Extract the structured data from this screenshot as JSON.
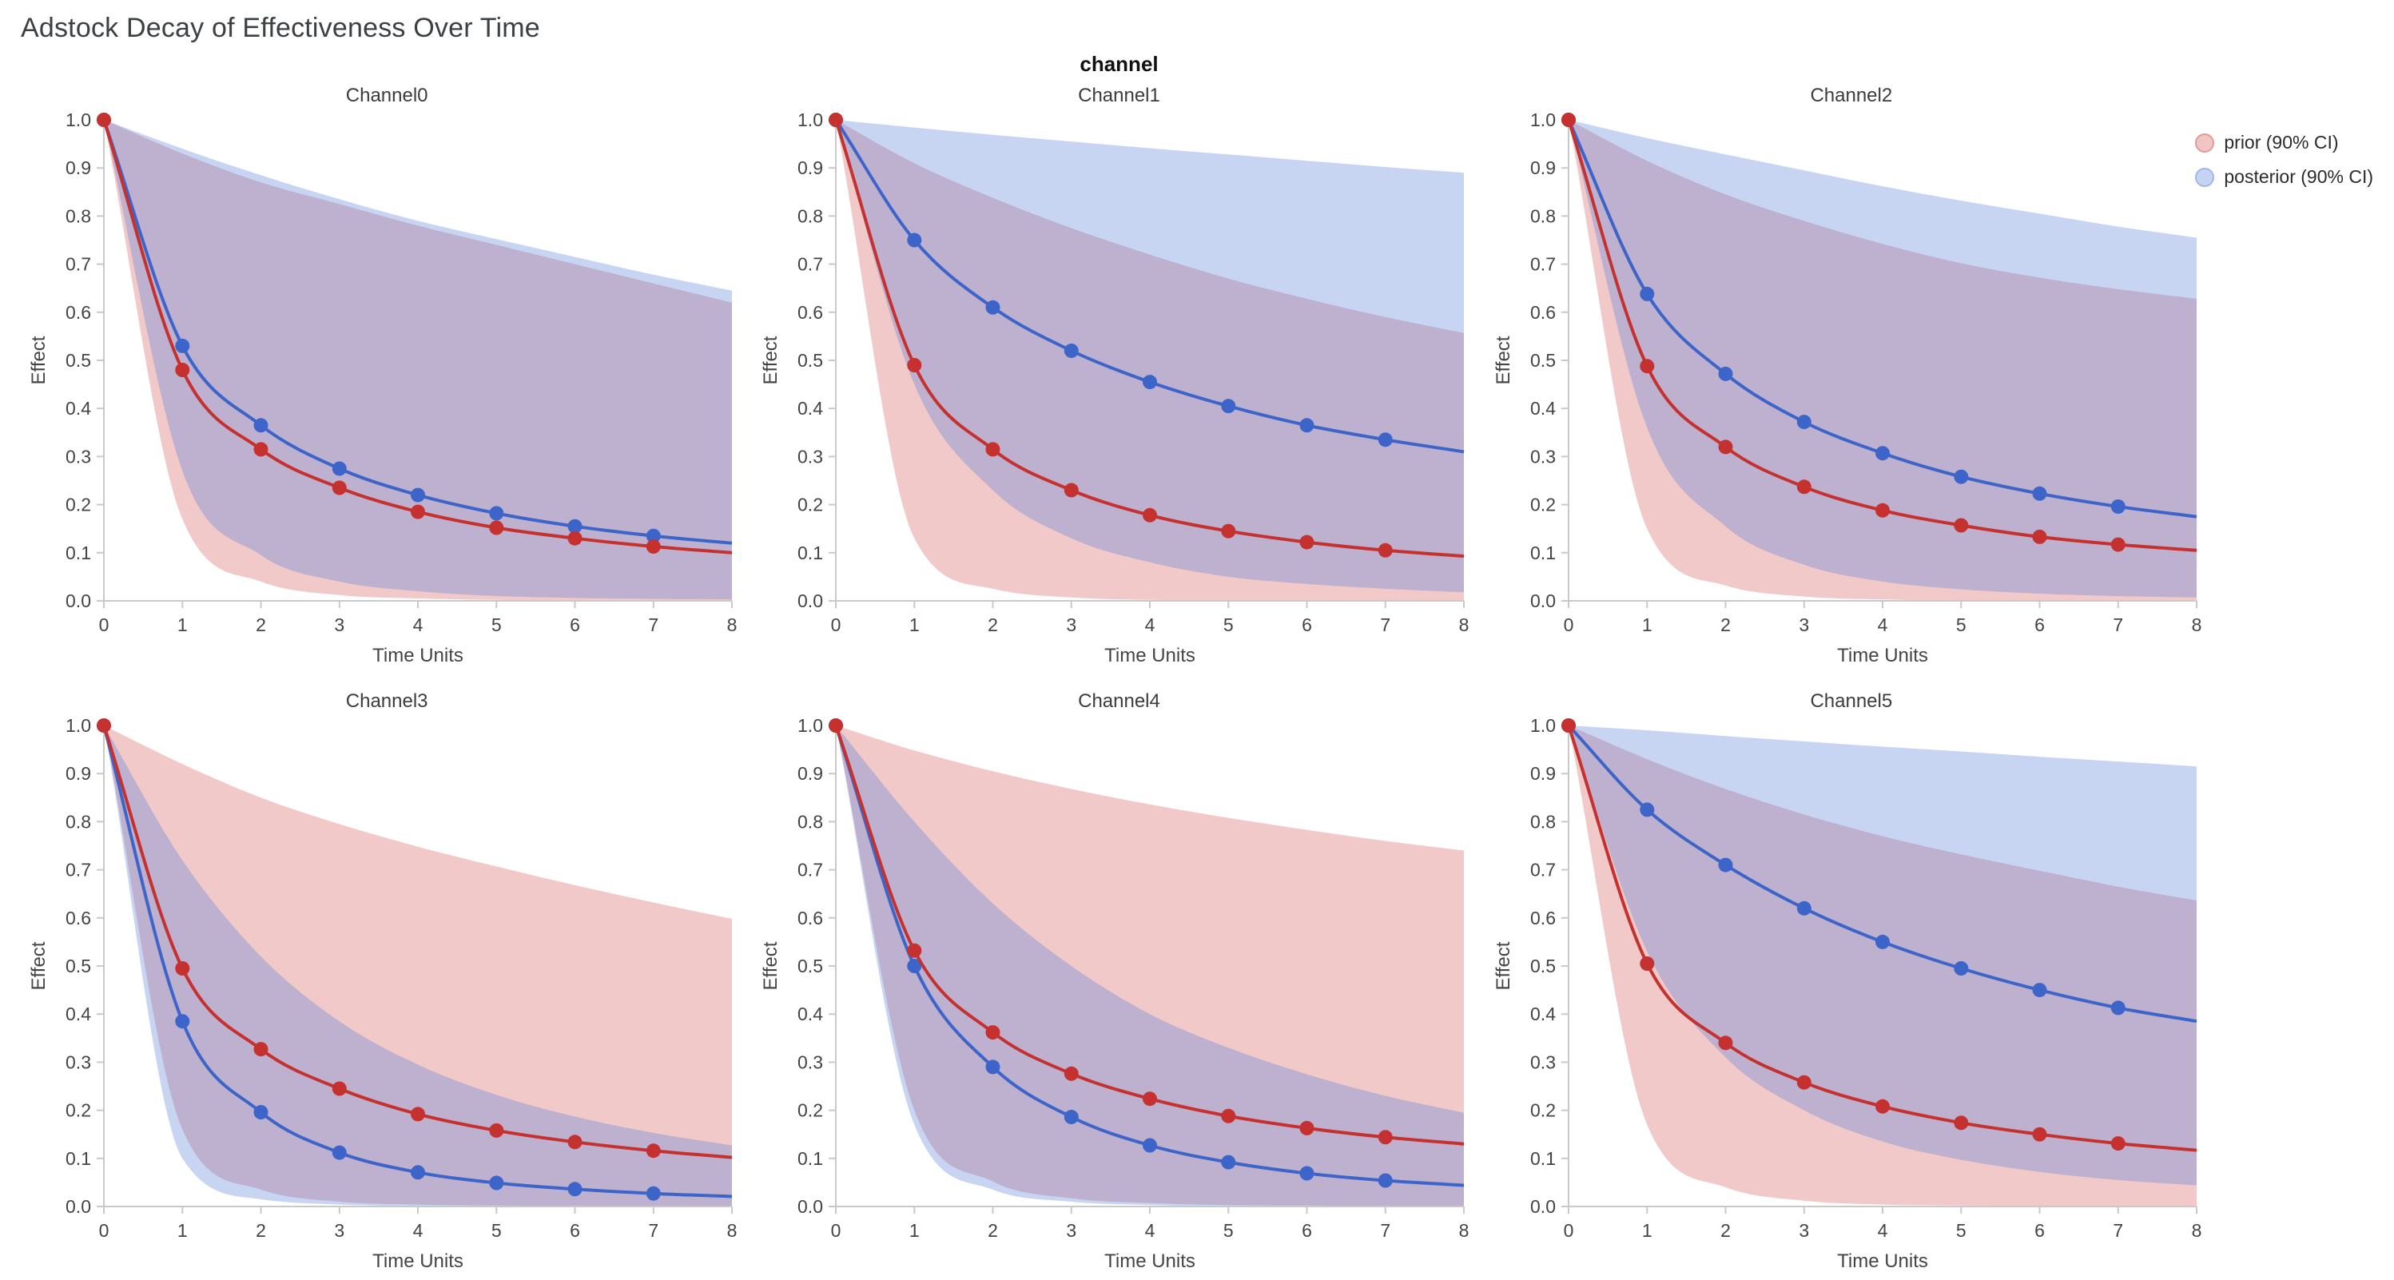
{
  "page_title": "Adstock Decay of Effectiveness Over Time",
  "facet_label": "channel",
  "legend": [
    {
      "label": "prior (90% CI)",
      "fill": "rgba(214,88,86,0.35)",
      "stroke": "#e39a96"
    },
    {
      "label": "posterior (90% CI)",
      "fill": "rgba(92,132,220,0.35)",
      "stroke": "#9fb6e8"
    }
  ],
  "colors": {
    "prior_line": "#C5312E",
    "posterior_line": "#3D65C9",
    "prior_band": "rgba(214,88,86,0.32)",
    "posterior_band": "rgba(92,132,220,0.34)",
    "axis": "#c9c9c9",
    "tick_label": "#444444",
    "title_text": "#3c3c3c"
  },
  "axes": {
    "x_label": "Time Units",
    "y_label": "Effect",
    "x_ticks": [
      "0",
      "1",
      "2",
      "3",
      "4",
      "5",
      "6",
      "7",
      "8"
    ],
    "y_ticks": [
      "0.0",
      "0.1",
      "0.2",
      "0.3",
      "0.4",
      "0.5",
      "0.6",
      "0.7",
      "0.8",
      "0.9",
      "1.0"
    ],
    "x_range": [
      0,
      8
    ],
    "y_range": [
      0,
      1
    ],
    "grid": false,
    "legend_position": "top-right"
  },
  "chart_data": [
    {
      "type": "line",
      "title": "Channel0",
      "xlabel": "Time Units",
      "ylabel": "Effect",
      "xlim": [
        0,
        8
      ],
      "ylim": [
        0,
        1
      ],
      "x": [
        0,
        1,
        2,
        3,
        4,
        5,
        6,
        7,
        8
      ],
      "series": [
        {
          "name": "prior mean",
          "values": [
            1.0,
            0.48,
            0.315,
            0.235,
            0.185,
            0.152,
            0.13,
            0.113,
            0.1
          ]
        },
        {
          "name": "prior 5%",
          "values": [
            1.0,
            0.17,
            0.04,
            0.012,
            0.005,
            0.002,
            0.001,
            0.001,
            0.0
          ]
        },
        {
          "name": "prior 95%",
          "values": [
            1.0,
            0.93,
            0.87,
            0.825,
            0.78,
            0.74,
            0.7,
            0.66,
            0.62
          ]
        },
        {
          "name": "posterior mean",
          "values": [
            1.0,
            0.53,
            0.365,
            0.275,
            0.22,
            0.182,
            0.155,
            0.135,
            0.12
          ]
        },
        {
          "name": "posterior 5%",
          "values": [
            1.0,
            0.27,
            0.095,
            0.04,
            0.02,
            0.01,
            0.006,
            0.004,
            0.003
          ]
        },
        {
          "name": "posterior 95%",
          "values": [
            1.0,
            0.94,
            0.885,
            0.835,
            0.79,
            0.752,
            0.715,
            0.678,
            0.645
          ]
        }
      ]
    },
    {
      "type": "line",
      "title": "Channel1",
      "xlabel": "Time Units",
      "ylabel": "Effect",
      "xlim": [
        0,
        8
      ],
      "ylim": [
        0,
        1
      ],
      "x": [
        0,
        1,
        2,
        3,
        4,
        5,
        6,
        7,
        8
      ],
      "series": [
        {
          "name": "prior mean",
          "values": [
            1.0,
            0.49,
            0.315,
            0.23,
            0.178,
            0.145,
            0.122,
            0.105,
            0.093
          ]
        },
        {
          "name": "prior 5%",
          "values": [
            1.0,
            0.13,
            0.025,
            0.007,
            0.002,
            0.001,
            0.0,
            0.0,
            0.0
          ]
        },
        {
          "name": "prior 95%",
          "values": [
            1.0,
            0.91,
            0.838,
            0.775,
            0.72,
            0.67,
            0.628,
            0.59,
            0.557
          ]
        },
        {
          "name": "posterior mean",
          "values": [
            1.0,
            0.75,
            0.61,
            0.52,
            0.455,
            0.405,
            0.365,
            0.335,
            0.31
          ]
        },
        {
          "name": "posterior 5%",
          "values": [
            1.0,
            0.45,
            0.23,
            0.13,
            0.08,
            0.05,
            0.035,
            0.025,
            0.018
          ]
        },
        {
          "name": "posterior 95%",
          "values": [
            1.0,
            0.984,
            0.969,
            0.955,
            0.941,
            0.928,
            0.915,
            0.902,
            0.89
          ]
        }
      ]
    },
    {
      "type": "line",
      "title": "Channel2",
      "xlabel": "Time Units",
      "ylabel": "Effect",
      "xlim": [
        0,
        8
      ],
      "ylim": [
        0,
        1
      ],
      "x": [
        0,
        1,
        2,
        3,
        4,
        5,
        6,
        7,
        8
      ],
      "series": [
        {
          "name": "prior mean",
          "values": [
            1.0,
            0.488,
            0.32,
            0.237,
            0.188,
            0.157,
            0.133,
            0.117,
            0.105
          ]
        },
        {
          "name": "prior 5%",
          "values": [
            1.0,
            0.15,
            0.032,
            0.009,
            0.003,
            0.001,
            0.001,
            0.0,
            0.0
          ]
        },
        {
          "name": "prior 95%",
          "values": [
            1.0,
            0.915,
            0.845,
            0.79,
            0.742,
            0.702,
            0.672,
            0.648,
            0.628
          ]
        },
        {
          "name": "posterior mean",
          "values": [
            1.0,
            0.638,
            0.472,
            0.372,
            0.307,
            0.258,
            0.223,
            0.196,
            0.175
          ]
        },
        {
          "name": "posterior 5%",
          "values": [
            1.0,
            0.36,
            0.155,
            0.075,
            0.04,
            0.024,
            0.015,
            0.01,
            0.007
          ]
        },
        {
          "name": "posterior 95%",
          "values": [
            1.0,
            0.962,
            0.928,
            0.895,
            0.862,
            0.832,
            0.805,
            0.778,
            0.755
          ]
        }
      ]
    },
    {
      "type": "line",
      "title": "Channel3",
      "xlabel": "Time Units",
      "ylabel": "Effect",
      "xlim": [
        0,
        8
      ],
      "ylim": [
        0,
        1
      ],
      "x": [
        0,
        1,
        2,
        3,
        4,
        5,
        6,
        7,
        8
      ],
      "series": [
        {
          "name": "prior mean",
          "values": [
            1.0,
            0.495,
            0.327,
            0.245,
            0.192,
            0.158,
            0.134,
            0.116,
            0.102
          ]
        },
        {
          "name": "prior 5%",
          "values": [
            1.0,
            0.16,
            0.035,
            0.01,
            0.004,
            0.002,
            0.001,
            0.0,
            0.0
          ]
        },
        {
          "name": "prior 95%",
          "values": [
            1.0,
            0.92,
            0.85,
            0.795,
            0.748,
            0.707,
            0.668,
            0.632,
            0.598
          ]
        },
        {
          "name": "posterior mean",
          "values": [
            1.0,
            0.385,
            0.196,
            0.112,
            0.071,
            0.049,
            0.036,
            0.027,
            0.021
          ]
        },
        {
          "name": "posterior 5%",
          "values": [
            1.0,
            0.1,
            0.015,
            0.004,
            0.001,
            0.0,
            0.0,
            0.0,
            0.0
          ]
        },
        {
          "name": "posterior 95%",
          "values": [
            1.0,
            0.72,
            0.52,
            0.385,
            0.295,
            0.232,
            0.187,
            0.153,
            0.127
          ]
        }
      ]
    },
    {
      "type": "line",
      "title": "Channel4",
      "xlabel": "Time Units",
      "ylabel": "Effect",
      "xlim": [
        0,
        8
      ],
      "ylim": [
        0,
        1
      ],
      "x": [
        0,
        1,
        2,
        3,
        4,
        5,
        6,
        7,
        8
      ],
      "series": [
        {
          "name": "prior mean",
          "values": [
            1.0,
            0.532,
            0.362,
            0.276,
            0.224,
            0.188,
            0.163,
            0.144,
            0.13
          ]
        },
        {
          "name": "prior 5%",
          "values": [
            1.0,
            0.2,
            0.052,
            0.017,
            0.007,
            0.003,
            0.002,
            0.001,
            0.001
          ]
        },
        {
          "name": "prior 95%",
          "values": [
            1.0,
            0.948,
            0.905,
            0.868,
            0.836,
            0.808,
            0.783,
            0.76,
            0.74
          ]
        },
        {
          "name": "posterior mean",
          "values": [
            1.0,
            0.5,
            0.29,
            0.186,
            0.127,
            0.092,
            0.069,
            0.054,
            0.044
          ]
        },
        {
          "name": "posterior 5%",
          "values": [
            1.0,
            0.17,
            0.035,
            0.01,
            0.003,
            0.001,
            0.001,
            0.0,
            0.0
          ]
        },
        {
          "name": "posterior 95%",
          "values": [
            1.0,
            0.8,
            0.63,
            0.5,
            0.4,
            0.33,
            0.275,
            0.23,
            0.195
          ]
        }
      ]
    },
    {
      "type": "line",
      "title": "Channel5",
      "xlabel": "Time Units",
      "ylabel": "Effect",
      "xlim": [
        0,
        8
      ],
      "ylim": [
        0,
        1
      ],
      "x": [
        0,
        1,
        2,
        3,
        4,
        5,
        6,
        7,
        8
      ],
      "series": [
        {
          "name": "prior mean",
          "values": [
            1.0,
            0.505,
            0.34,
            0.258,
            0.208,
            0.174,
            0.15,
            0.131,
            0.117
          ]
        },
        {
          "name": "prior 5%",
          "values": [
            1.0,
            0.17,
            0.04,
            0.012,
            0.004,
            0.002,
            0.001,
            0.0,
            0.0
          ]
        },
        {
          "name": "prior 95%",
          "values": [
            1.0,
            0.93,
            0.868,
            0.815,
            0.77,
            0.732,
            0.698,
            0.665,
            0.636
          ]
        },
        {
          "name": "posterior mean",
          "values": [
            1.0,
            0.825,
            0.71,
            0.62,
            0.55,
            0.495,
            0.45,
            0.413,
            0.385
          ]
        },
        {
          "name": "posterior 5%",
          "values": [
            1.0,
            0.53,
            0.31,
            0.2,
            0.135,
            0.097,
            0.072,
            0.055,
            0.044
          ]
        },
        {
          "name": "posterior 95%",
          "values": [
            1.0,
            0.99,
            0.978,
            0.967,
            0.956,
            0.946,
            0.935,
            0.925,
            0.915
          ]
        }
      ]
    }
  ]
}
